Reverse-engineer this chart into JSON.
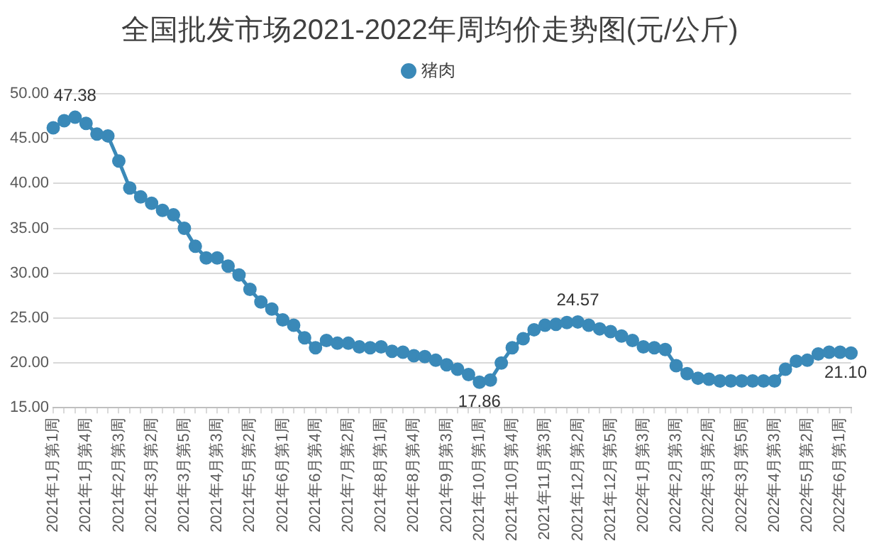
{
  "chart_data": {
    "type": "line",
    "title": "全国批发市场2021-2022年周均价走势图(元/公斤)",
    "categories": [
      "2021年1月第1周",
      null,
      null,
      "2021年1月第4周",
      null,
      null,
      "2021年2月第3周",
      null,
      null,
      "2021年3月第2周",
      null,
      null,
      "2021年3月第5周",
      null,
      null,
      "2021年4月第3周",
      null,
      null,
      "2021年5月第2周",
      null,
      null,
      "2021年6月第1周",
      null,
      null,
      "2021年6月第4周",
      null,
      null,
      "2021年7月第2周",
      null,
      null,
      "2021年8月第1周",
      null,
      null,
      "2021年8月第4周",
      null,
      null,
      "2021年9月第3周",
      null,
      null,
      "2021年10月第1周",
      null,
      null,
      "2021年10月第4周",
      null,
      null,
      "2021年11月第3周",
      null,
      null,
      "2021年12月第2周",
      null,
      null,
      "2021年12月第5周",
      null,
      null,
      "2022年1月第3周",
      null,
      null,
      "2022年2月第3周",
      null,
      null,
      "2022年3月第2周",
      null,
      null,
      "2022年3月第5周",
      null,
      null,
      "2022年4月第3周",
      null,
      null,
      "2022年5月第2周",
      null,
      null,
      "2022年6月第1周",
      null
    ],
    "series": [
      {
        "name": "猪肉",
        "color": "#3a89b8",
        "values": [
          46.2,
          47.0,
          47.38,
          46.7,
          45.5,
          45.3,
          42.5,
          39.5,
          38.5,
          37.8,
          37.0,
          36.5,
          35.0,
          33.0,
          31.7,
          31.7,
          30.8,
          29.8,
          28.2,
          26.8,
          26.0,
          24.8,
          24.2,
          22.8,
          21.7,
          22.5,
          22.2,
          22.2,
          21.8,
          21.7,
          21.8,
          21.3,
          21.2,
          20.8,
          20.7,
          20.3,
          19.8,
          19.3,
          18.7,
          17.86,
          18.1,
          20.0,
          21.7,
          22.7,
          23.7,
          24.2,
          24.3,
          24.5,
          24.57,
          24.2,
          23.8,
          23.5,
          23.0,
          22.5,
          21.8,
          21.7,
          21.5,
          19.7,
          18.8,
          18.3,
          18.2,
          18.0,
          18.0,
          18.0,
          18.0,
          18.0,
          18.0,
          19.3,
          20.2,
          20.3,
          21.0,
          21.2,
          21.2,
          21.1
        ],
        "value_labels": [
          null,
          null,
          "47.38",
          null,
          null,
          null,
          null,
          null,
          null,
          null,
          null,
          null,
          null,
          null,
          null,
          null,
          null,
          null,
          null,
          null,
          null,
          null,
          null,
          null,
          null,
          null,
          null,
          null,
          null,
          null,
          null,
          null,
          null,
          null,
          null,
          null,
          null,
          null,
          null,
          "17.86",
          null,
          null,
          null,
          null,
          null,
          null,
          null,
          null,
          "24.57",
          null,
          null,
          null,
          null,
          null,
          null,
          null,
          null,
          null,
          null,
          null,
          null,
          null,
          null,
          null,
          null,
          null,
          null,
          null,
          null,
          null,
          null,
          null,
          null,
          "21.10"
        ]
      }
    ],
    "ylim": [
      15,
      50
    ],
    "yticks": [
      {
        "value": 15,
        "label": "15.00"
      },
      {
        "value": 20,
        "label": "20.00"
      },
      {
        "value": 25,
        "label": "25.00"
      },
      {
        "value": 30,
        "label": "30.00"
      },
      {
        "value": 35,
        "label": "35.00"
      },
      {
        "value": 40,
        "label": "40.00"
      },
      {
        "value": 45,
        "label": "45.00"
      },
      {
        "value": 50,
        "label": "50.00"
      }
    ],
    "grid": "y",
    "legend": "top",
    "marker": "circle",
    "line_style": "solid"
  }
}
